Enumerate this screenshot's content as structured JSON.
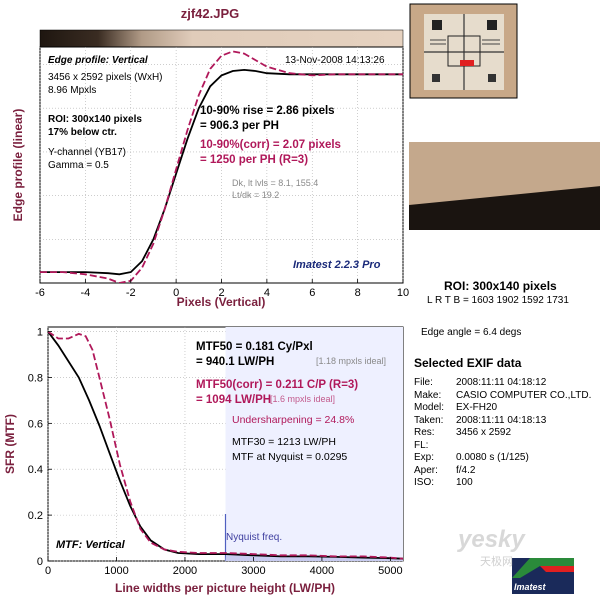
{
  "title": "zjf42.JPG",
  "edge_panel": {
    "heading": "Edge profile: Vertical",
    "date": "13-Nov-2008 14:13:26",
    "info": [
      "3456 x 2592 pixels (WxH)",
      "8.96 Mpxls"
    ],
    "roi": [
      "ROI: 300x140 pixels",
      "17% below ctr."
    ],
    "channel": [
      "Y-channel (YB17)",
      "Gamma = 0.5"
    ],
    "rise": [
      "10-90% rise = 2.86 pixels",
      "= 906.3 per PH"
    ],
    "rise_corr": [
      "10-90%(corr) = 2.07 pixels",
      "= 1250 per PH  (R=3)"
    ],
    "levels": [
      "Dk, lt lvls = 8.1, 155.4",
      "Lt/dk = 19.2"
    ],
    "watermark": "Imatest 2.2.3 Pro"
  },
  "mtf_panel": {
    "mtf50": [
      "MTF50 = 0.181 Cy/Pxl",
      "= 940.1 LW/PH"
    ],
    "mtf50_ideal": "[1.18 mpxls ideal]",
    "mtf50_corr": [
      "MTF50(corr) = 0.211 C/P  (R=3)",
      "= 1094 LW/PH"
    ],
    "mtf50_corr_ideal": "[1.6 mpxls ideal]",
    "undersharpening": "Undersharpening = 24.8%",
    "mtf30": "MTF30 = 1213 LW/PH",
    "nyquist_mtf": "MTF at Nyquist = 0.0295",
    "nyquist_label": "Nyquist freq.",
    "heading": "MTF: Vertical"
  },
  "right_panel": {
    "roi_title": "ROI: 300x140 pixels",
    "lrtb": "L R  T B = 1603 1902   1592 1731",
    "edge_angle": "Edge angle = 6.4 degs",
    "exif_title": "Selected EXIF data",
    "exif": [
      {
        "k": "File:",
        "v": "2008:11:11 04:18:12"
      },
      {
        "k": "Make:",
        "v": "CASIO COMPUTER CO.,LTD."
      },
      {
        "k": "Model:",
        "v": "EX-FH20"
      },
      {
        "k": "Taken:",
        "v": "2008:11:11 04:18:13"
      },
      {
        "k": "Res:",
        "v": "3456 x 2592"
      },
      {
        "k": "FL:",
        "v": ""
      },
      {
        "k": "Exp:",
        "v": "0.0080 s  (1/125)"
      },
      {
        "k": "Aper:",
        "v": "f/4.2"
      },
      {
        "k": "ISO:",
        "v": "100"
      }
    ],
    "logo_text": "Imatest",
    "site_watermark": "yesky",
    "site_watermark_cn": "天极网"
  },
  "colors": {
    "magenta": "#b0185a",
    "black": "#000000",
    "gradient_dark": "#1e1610",
    "gradient_light": "#e6d2c0"
  },
  "chart_data": [
    {
      "type": "line",
      "title": "Edge profile: Vertical",
      "xlabel": "Pixels (Vertical)",
      "ylabel": "Edge profile (linear)",
      "xlim": [
        -6,
        10
      ],
      "ylim": [
        0,
        1.08
      ],
      "xticks": [
        -6,
        -4,
        -2,
        0,
        2,
        4,
        6,
        8,
        10
      ],
      "grid": true,
      "series": [
        {
          "x": [
            -6,
            -5,
            -4,
            -3,
            -2.5,
            -2,
            -1.5,
            -1,
            -0.5,
            0,
            0.5,
            1,
            1.5,
            2,
            2.5,
            3,
            3.5,
            4,
            5,
            6,
            7,
            8,
            9,
            10
          ],
          "y": [
            0.05,
            0.05,
            0.05,
            0.045,
            0.04,
            0.05,
            0.1,
            0.2,
            0.34,
            0.5,
            0.66,
            0.8,
            0.9,
            0.95,
            0.97,
            0.975,
            0.97,
            0.96,
            0.955,
            0.955,
            0.955,
            0.955,
            0.955,
            0.955
          ]
        },
        {
          "x": [
            -6,
            -5,
            -4,
            -3,
            -2.5,
            -2,
            -1.5,
            -1,
            -0.5,
            0,
            0.5,
            1,
            1.5,
            2,
            2.5,
            3,
            3.5,
            4,
            5,
            6,
            7,
            8,
            9,
            10
          ],
          "y": [
            0.05,
            0.05,
            0.04,
            0.02,
            0.0,
            0.01,
            0.07,
            0.18,
            0.34,
            0.52,
            0.7,
            0.86,
            0.98,
            1.04,
            1.06,
            1.05,
            1.02,
            0.99,
            0.96,
            0.95,
            0.955,
            0.955,
            0.955,
            0.955
          ]
        }
      ]
    },
    {
      "type": "line",
      "title": "MTF: Vertical",
      "xlabel": "Line widths per picture height (LW/PH)",
      "ylabel": "SFR (MTF)",
      "xlim": [
        0,
        5184
      ],
      "ylim": [
        0,
        1.02
      ],
      "xticks": [
        0,
        1000,
        2000,
        3000,
        4000,
        5000
      ],
      "yticks": [
        0,
        0.2,
        0.4,
        0.6,
        0.8,
        1
      ],
      "grid": true,
      "nyquist_x": 2592,
      "series": [
        {
          "x": [
            0,
            150,
            300,
            450,
            600,
            750,
            900,
            1050,
            1200,
            1350,
            1500,
            1700,
            1900,
            2200,
            2600,
            3000,
            3400,
            3800,
            4200,
            4600,
            5000,
            5184
          ],
          "y": [
            1,
            0.94,
            0.87,
            0.8,
            0.7,
            0.59,
            0.47,
            0.35,
            0.24,
            0.15,
            0.09,
            0.05,
            0.035,
            0.03,
            0.03,
            0.025,
            0.02,
            0.02,
            0.018,
            0.015,
            0.012,
            0.01
          ]
        },
        {
          "x": [
            0,
            150,
            300,
            450,
            550,
            650,
            750,
            900,
            1050,
            1200,
            1350,
            1500,
            1700,
            1900,
            2200,
            2600,
            3000,
            3400,
            3800,
            4200,
            4600,
            5000,
            5184
          ],
          "y": [
            1,
            0.97,
            0.97,
            0.99,
            0.98,
            0.92,
            0.8,
            0.62,
            0.42,
            0.26,
            0.14,
            0.08,
            0.05,
            0.04,
            0.035,
            0.035,
            0.03,
            0.025,
            0.025,
            0.02,
            0.02,
            0.015,
            0.01
          ]
        }
      ]
    }
  ]
}
